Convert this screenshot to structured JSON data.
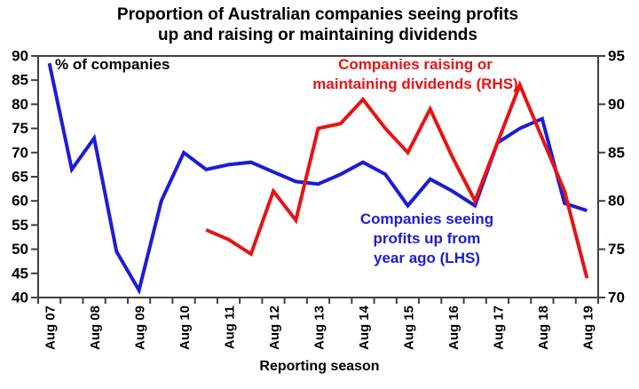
{
  "title": {
    "line1": "Proportion of Australian companies seeing profits",
    "line2": "up and raising or maintaining dividends"
  },
  "chart_data": {
    "type": "line",
    "xlabel": "Reporting season",
    "categories": [
      "Aug 07",
      "Feb 08",
      "Aug 08",
      "Feb 09",
      "Aug 09",
      "Feb 10",
      "Aug 10",
      "Feb 11",
      "Aug 11",
      "Feb 12",
      "Aug 12",
      "Feb 13",
      "Aug 13",
      "Feb 14",
      "Aug 14",
      "Feb 15",
      "Aug 15",
      "Feb 16",
      "Aug 16",
      "Feb 17",
      "Aug 17",
      "Feb 18",
      "Aug 18",
      "Feb 19",
      "Aug 19"
    ],
    "shown_tick_labels": [
      "Aug 07",
      "Aug 08",
      "Aug 09",
      "Aug 10",
      "Aug 11",
      "Aug 12",
      "Aug 13",
      "Aug 14",
      "Aug 15",
      "Aug 16",
      "Aug 17",
      "Aug 18",
      "Aug 19"
    ],
    "left_axis": {
      "label": "% of companies",
      "min": 40,
      "max": 90,
      "step": 5
    },
    "right_axis": {
      "min": 70,
      "max": 95,
      "step": 5
    },
    "grid": false,
    "axis_color": "#3f3f3f",
    "series": [
      {
        "id": "profits_lhs",
        "name": "Companies seeing profits up from year ago (LHS)",
        "axis": "left",
        "color": "#1c1cd6",
        "start_index": 0,
        "values": [
          88.5,
          66.5,
          73,
          49.5,
          41.5,
          60,
          70,
          66.5,
          67.5,
          68,
          66,
          64,
          63.5,
          65.5,
          68,
          65.5,
          59,
          64.5,
          62,
          59,
          72,
          75,
          77,
          59.5,
          58
        ]
      },
      {
        "id": "dividends_rhs",
        "name": "Companies raising or maintaining dividends (RHS)",
        "axis": "right",
        "color": "#e61414",
        "start_index": 7,
        "values": [
          77,
          76,
          74.5,
          81,
          78,
          87.5,
          88,
          90.5,
          87.5,
          85,
          89.5,
          84.5,
          80,
          86,
          92,
          86.5,
          81,
          72
        ]
      }
    ],
    "annotations": {
      "red": {
        "line1": "Companies raising or",
        "line2": "maintaining dividends (RHS)",
        "color": "#e61414"
      },
      "blue": {
        "line1": "Companies seeing",
        "line2": "profits up from",
        "line3": "year ago (LHS)",
        "color": "#1c1cd6"
      }
    }
  }
}
